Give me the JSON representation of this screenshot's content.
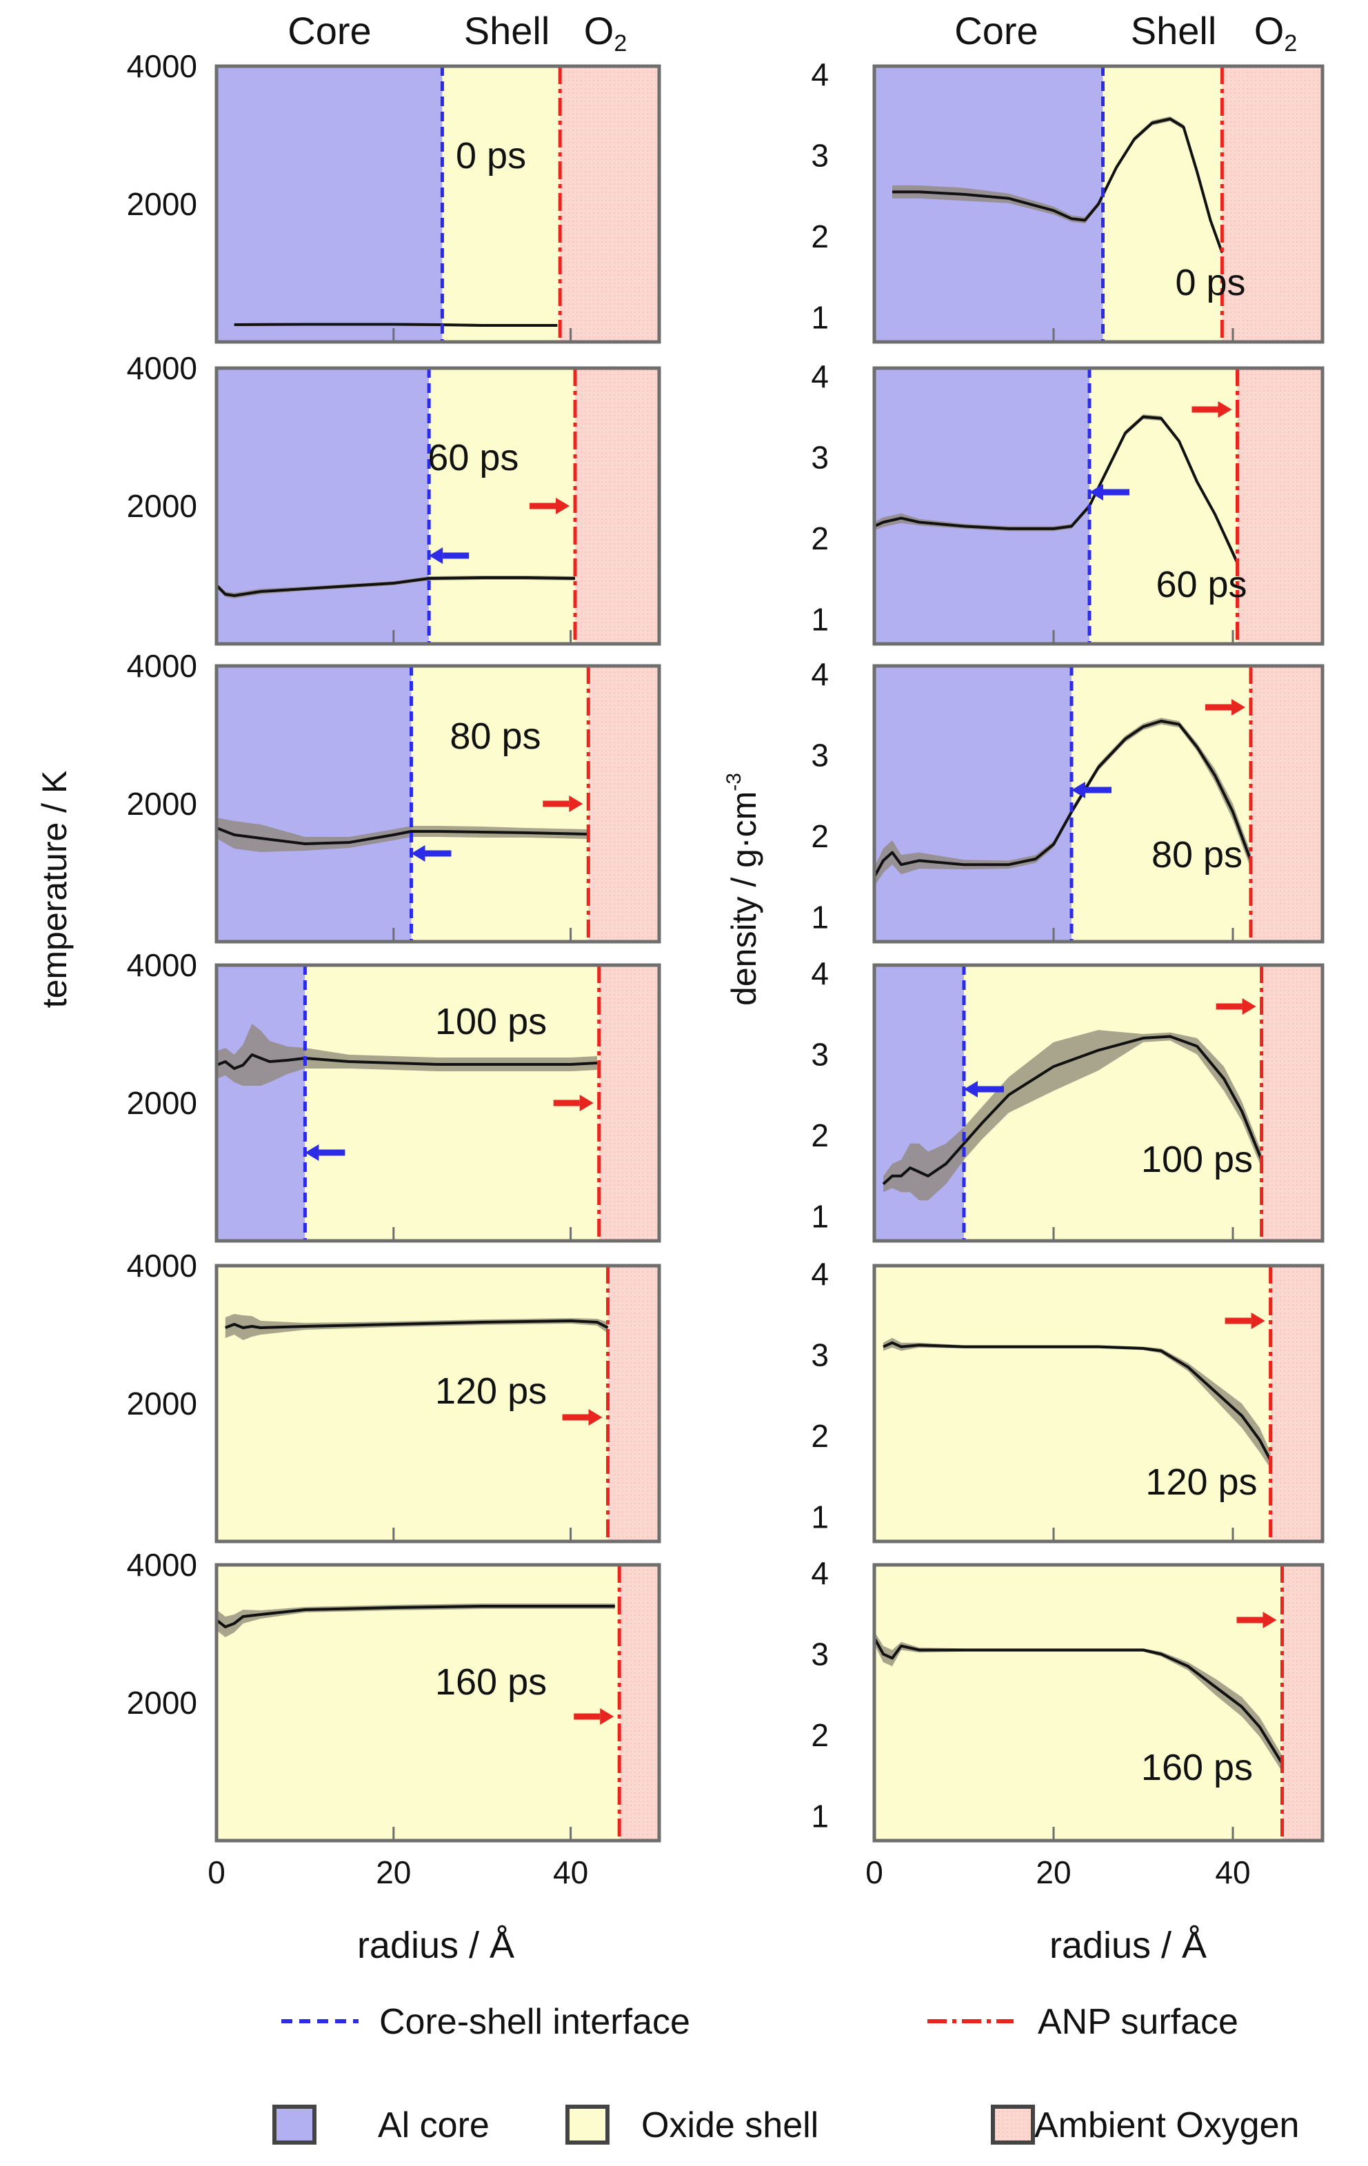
{
  "header": {
    "left": {
      "core": "Core",
      "shell": "Shell",
      "o2": "O",
      "o2_sub": "2"
    },
    "right": {
      "core": "Core",
      "shell": "Shell",
      "o2": "O",
      "o2_sub": "2"
    }
  },
  "colors": {
    "core": "#b3b0f2",
    "shell": "#fcfccf",
    "oxygen": "#fbd7cf",
    "interface": "#2b2be8",
    "surface": "#e8261f",
    "curve": "#111111",
    "band": "#8d8775",
    "frame": "#6e6e6e"
  },
  "legend": {
    "interface": "Core-shell interface",
    "surface": "ANP surface",
    "core": "Al core",
    "shell": "Oxide shell",
    "oxygen": "Ambient Oxygen"
  },
  "chart_data": [
    {
      "type": "line",
      "ylabel": "temperature / K",
      "xlabel": "radius / Å",
      "xlim": [
        0,
        50
      ],
      "ylim": [
        0,
        4000
      ],
      "xticks": [
        0,
        20,
        40
      ],
      "yticks": [
        2000,
        4000
      ],
      "panels": [
        {
          "label": "0 ps",
          "interface": 25.5,
          "surface": 38.8,
          "x": [
            2,
            10,
            20,
            25,
            30,
            38.5
          ],
          "y": [
            250,
            255,
            255,
            250,
            240,
            240
          ],
          "band": [
            20,
            20,
            20,
            20,
            20,
            20
          ],
          "arrows": {
            "interface_dir": "",
            "surface_dir": ""
          }
        },
        {
          "label": "60 ps",
          "interface": 24,
          "surface": 40.5,
          "x": [
            0,
            1,
            2,
            5,
            10,
            15,
            20,
            24,
            30,
            35,
            40.5
          ],
          "y": [
            850,
            720,
            700,
            760,
            800,
            840,
            880,
            950,
            960,
            960,
            950
          ],
          "band": [
            40,
            40,
            40,
            40,
            30,
            30,
            30,
            30,
            30,
            30,
            30
          ],
          "arrows": {
            "interface_dir": "left",
            "surface_dir": "right"
          }
        },
        {
          "label": "80 ps",
          "interface": 22,
          "surface": 42,
          "x": [
            0,
            2,
            5,
            10,
            15,
            20,
            22,
            25,
            30,
            35,
            42
          ],
          "y": [
            1650,
            1550,
            1500,
            1420,
            1440,
            1550,
            1600,
            1600,
            1590,
            1580,
            1560
          ],
          "band": [
            150,
            200,
            200,
            100,
            80,
            80,
            80,
            80,
            80,
            70,
            70
          ],
          "arrows": {
            "interface_dir": "left",
            "surface_dir": "right"
          }
        },
        {
          "label": "100 ps",
          "interface": 10,
          "surface": 43.2,
          "x": [
            0,
            1,
            2,
            3,
            4,
            5,
            6,
            8,
            10,
            15,
            20,
            25,
            30,
            35,
            40,
            43
          ],
          "y": [
            2550,
            2600,
            2500,
            2550,
            2700,
            2650,
            2600,
            2620,
            2650,
            2600,
            2580,
            2560,
            2560,
            2560,
            2560,
            2580
          ],
          "band": [
            200,
            200,
            200,
            300,
            450,
            400,
            300,
            200,
            150,
            100,
            100,
            100,
            100,
            100,
            100,
            100
          ],
          "arrows": {
            "interface_dir": "left",
            "surface_dir": "right"
          }
        },
        {
          "label": "120 ps",
          "interface": null,
          "surface": 44.2,
          "x": [
            1,
            2,
            3,
            4,
            5,
            10,
            20,
            30,
            40,
            43,
            44.2
          ],
          "y": [
            3100,
            3150,
            3100,
            3120,
            3100,
            3120,
            3150,
            3180,
            3200,
            3180,
            3100
          ],
          "band": [
            150,
            150,
            180,
            150,
            100,
            50,
            40,
            40,
            40,
            50,
            80
          ],
          "arrows": {
            "interface_dir": "",
            "surface_dir": "right"
          }
        },
        {
          "label": "160 ps",
          "interface": null,
          "surface": 45.5,
          "x": [
            0,
            1,
            2,
            3,
            5,
            10,
            20,
            30,
            40,
            45
          ],
          "y": [
            3200,
            3100,
            3150,
            3250,
            3280,
            3350,
            3380,
            3400,
            3400,
            3400
          ],
          "band": [
            150,
            150,
            130,
            100,
            60,
            40,
            40,
            40,
            40,
            40
          ],
          "arrows": {
            "interface_dir": "",
            "surface_dir": "right"
          }
        }
      ]
    },
    {
      "type": "line",
      "ylabel": "density / g·cm",
      "ylabel_sup": "-3",
      "xlabel": "radius / Å",
      "xlim": [
        0,
        50
      ],
      "ylim": [
        0.7,
        4.1
      ],
      "xticks": [
        0,
        20,
        40
      ],
      "yticks": [
        1,
        2,
        3,
        4
      ],
      "panels": [
        {
          "label": "0 ps",
          "interface": 25.5,
          "surface": 38.8,
          "x": [
            2,
            5,
            10,
            15,
            20,
            22,
            23.5,
            25,
            27,
            29,
            31,
            33,
            34.5,
            36,
            37.5,
            38.8
          ],
          "y": [
            2.55,
            2.55,
            2.52,
            2.47,
            2.32,
            2.22,
            2.2,
            2.4,
            2.85,
            3.2,
            3.4,
            3.45,
            3.35,
            2.8,
            2.2,
            1.8
          ],
          "band": [
            0.08,
            0.08,
            0.08,
            0.06,
            0.05,
            0.04,
            0.04,
            0.03,
            0.03,
            0.03,
            0.03,
            0.03,
            0.03,
            0.03,
            0.03,
            0.03
          ],
          "arrows": {
            "interface_dir": "",
            "surface_dir": ""
          }
        },
        {
          "label": "60 ps",
          "interface": 24,
          "surface": 40.5,
          "x": [
            0,
            1,
            3,
            5,
            10,
            15,
            20,
            22,
            24,
            26,
            28,
            30,
            32,
            34,
            36,
            38,
            40.5
          ],
          "y": [
            2.15,
            2.2,
            2.25,
            2.2,
            2.15,
            2.12,
            2.12,
            2.15,
            2.4,
            2.85,
            3.3,
            3.5,
            3.48,
            3.2,
            2.7,
            2.3,
            1.7
          ],
          "band": [
            0.05,
            0.06,
            0.06,
            0.04,
            0.03,
            0.03,
            0.03,
            0.03,
            0.03,
            0.03,
            0.03,
            0.03,
            0.03,
            0.03,
            0.03,
            0.03,
            0.05
          ],
          "arrows": {
            "interface_dir": "left",
            "surface_dir": "right"
          }
        },
        {
          "label": "80 ps",
          "interface": 22,
          "surface": 42,
          "x": [
            0,
            1,
            2,
            3,
            5,
            10,
            15,
            18,
            20,
            22,
            25,
            28,
            30,
            32,
            34,
            36,
            38,
            40,
            42
          ],
          "y": [
            1.5,
            1.7,
            1.8,
            1.65,
            1.7,
            1.65,
            1.65,
            1.72,
            1.9,
            2.3,
            2.85,
            3.2,
            3.35,
            3.42,
            3.38,
            3.1,
            2.75,
            2.3,
            1.7
          ],
          "band": [
            0.12,
            0.15,
            0.15,
            0.12,
            0.1,
            0.06,
            0.05,
            0.05,
            0.04,
            0.04,
            0.04,
            0.04,
            0.04,
            0.04,
            0.04,
            0.05,
            0.08,
            0.1,
            0.1
          ],
          "arrows": {
            "interface_dir": "left",
            "surface_dir": "right"
          }
        },
        {
          "label": "100 ps",
          "interface": 10,
          "surface": 43.2,
          "x": [
            1,
            2,
            3,
            4,
            5,
            6,
            8,
            10,
            12,
            15,
            20,
            25,
            30,
            33,
            36,
            39,
            41,
            43.2
          ],
          "y": [
            1.4,
            1.5,
            1.5,
            1.6,
            1.55,
            1.5,
            1.65,
            1.9,
            2.15,
            2.5,
            2.85,
            3.05,
            3.2,
            3.22,
            3.1,
            2.7,
            2.3,
            1.7
          ],
          "band": [
            0.1,
            0.15,
            0.2,
            0.3,
            0.35,
            0.3,
            0.25,
            0.2,
            0.2,
            0.22,
            0.3,
            0.25,
            0.05,
            0.05,
            0.1,
            0.15,
            0.12,
            0.1
          ],
          "arrows": {
            "interface_dir": "left",
            "surface_dir": "right"
          }
        },
        {
          "label": "120 ps",
          "interface": null,
          "surface": 44.2,
          "x": [
            1,
            2,
            3,
            5,
            10,
            15,
            20,
            25,
            30,
            32,
            35,
            38,
            41,
            43,
            44.2
          ],
          "y": [
            3.1,
            3.15,
            3.1,
            3.12,
            3.1,
            3.1,
            3.1,
            3.1,
            3.08,
            3.05,
            2.85,
            2.55,
            2.25,
            1.95,
            1.7
          ],
          "band": [
            0.05,
            0.06,
            0.05,
            0.03,
            0.02,
            0.02,
            0.02,
            0.02,
            0.02,
            0.03,
            0.05,
            0.1,
            0.15,
            0.15,
            0.1
          ],
          "arrows": {
            "interface_dir": "",
            "surface_dir": "right"
          }
        },
        {
          "label": "160 ps",
          "interface": null,
          "surface": 45.5,
          "x": [
            0,
            1,
            2,
            3,
            5,
            10,
            20,
            30,
            32,
            35,
            38,
            41,
            43,
            45.5
          ],
          "y": [
            3.2,
            3.0,
            2.95,
            3.1,
            3.05,
            3.05,
            3.05,
            3.05,
            3.0,
            2.85,
            2.6,
            2.35,
            2.1,
            1.65
          ],
          "band": [
            0.08,
            0.1,
            0.1,
            0.05,
            0.03,
            0.02,
            0.02,
            0.02,
            0.03,
            0.05,
            0.1,
            0.12,
            0.12,
            0.1
          ],
          "arrows": {
            "interface_dir": "",
            "surface_dir": "right"
          }
        }
      ]
    }
  ]
}
